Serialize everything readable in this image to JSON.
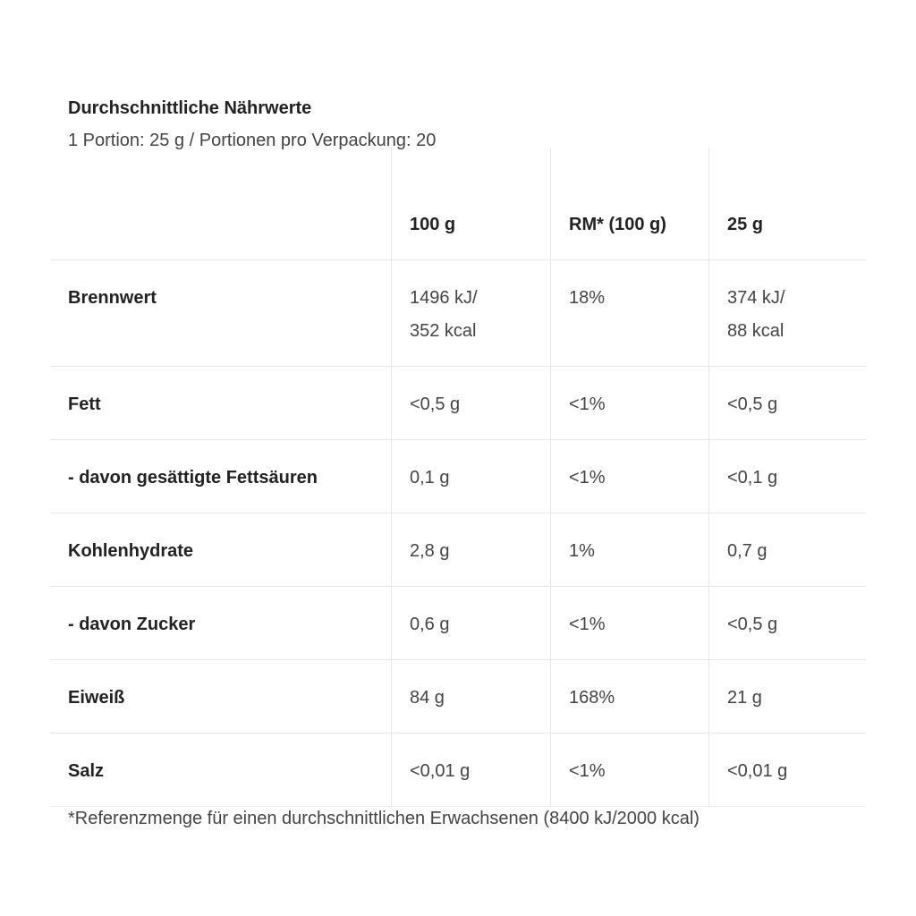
{
  "title": "Durchschnittliche Nährwerte",
  "subtitle": "1 Portion: 25 g / Portionen pro Verpackung: 20",
  "columns": [
    "",
    "100 g",
    "RM* (100 g)",
    "25 g"
  ],
  "rows": [
    {
      "name": "Brennwert",
      "per100_line1": "1496 kJ/",
      "per100_line2": "352 kcal",
      "rm": "18%",
      "portion_line1": "374 kJ/",
      "portion_line2": "88 kcal"
    },
    {
      "name": "Fett",
      "per100": "<0,5 g",
      "rm": "<1%",
      "portion": "<0,5 g"
    },
    {
      "name": "- davon gesättigte Fettsäuren",
      "per100": "0,1 g",
      "rm": "<1%",
      "portion": "<0,1 g"
    },
    {
      "name": "Kohlenhydrate",
      "per100": "2,8 g",
      "rm": "1%",
      "portion": "0,7 g"
    },
    {
      "name": "- davon Zucker",
      "per100": "0,6 g",
      "rm": "<1%",
      "portion": "<0,5 g"
    },
    {
      "name": "Eiweiß",
      "per100": "84 g",
      "rm": "168%",
      "portion": "21 g"
    },
    {
      "name": "Salz",
      "per100": "<0,01 g",
      "rm": "<1%",
      "portion": "<0,01 g"
    }
  ],
  "footnote": "*Referenzmenge für einen durchschnittlichen Erwachsenen (8400 kJ/2000 kcal)"
}
